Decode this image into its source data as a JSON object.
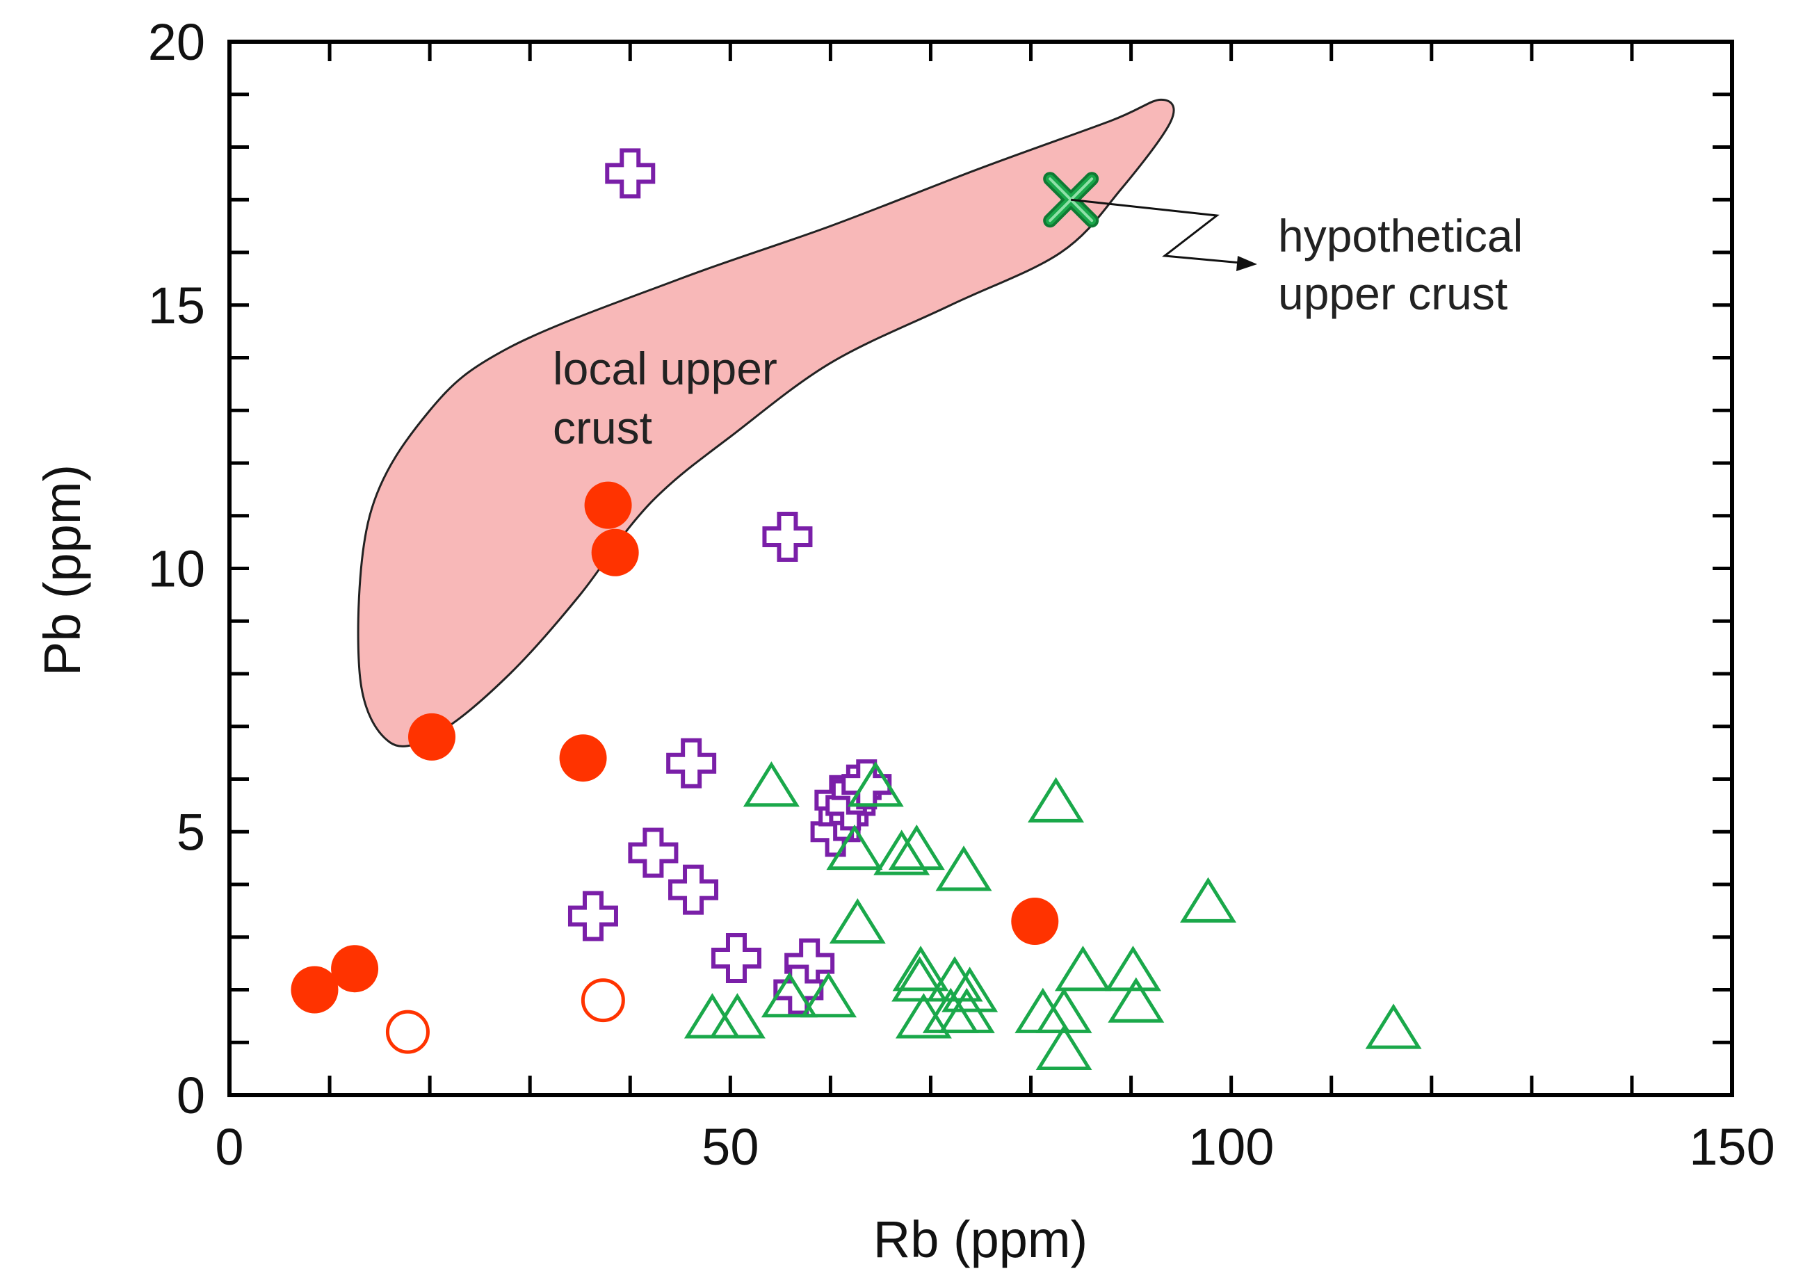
{
  "chart_data": {
    "type": "scatter",
    "title": "",
    "xlabel": "Rb (ppm)",
    "ylabel": "Pb (ppm)",
    "xlim": [
      0,
      150
    ],
    "ylim": [
      0,
      20
    ],
    "x_ticks": [
      0,
      50,
      100,
      150
    ],
    "y_ticks": [
      0,
      5,
      10,
      15,
      20
    ],
    "grid": false,
    "legend": "none",
    "series": [
      {
        "name": "filled circles",
        "marker": "filled-circle",
        "color": "#ff3300",
        "points": [
          [
            8.5,
            2.0
          ],
          [
            12.5,
            2.4
          ],
          [
            20.2,
            6.8
          ],
          [
            35.3,
            6.4
          ],
          [
            37.8,
            11.2
          ],
          [
            38.5,
            10.3
          ],
          [
            80.4,
            3.3
          ]
        ]
      },
      {
        "name": "open circles",
        "marker": "open-circle",
        "color": "#ff3300",
        "points": [
          [
            17.8,
            1.2
          ],
          [
            37.3,
            1.8
          ]
        ]
      },
      {
        "name": "crosses",
        "marker": "open-cross",
        "color": "#7a1fa8",
        "points": [
          [
            40.0,
            17.5
          ],
          [
            55.7,
            10.6
          ],
          [
            46.1,
            6.3
          ],
          [
            42.3,
            4.6
          ],
          [
            46.3,
            3.9
          ],
          [
            36.3,
            3.4
          ],
          [
            50.6,
            2.6
          ],
          [
            57.9,
            2.5
          ],
          [
            56.8,
            2.0
          ],
          [
            60.5,
            5.0
          ],
          [
            61.3,
            5.3
          ],
          [
            60.9,
            5.6
          ],
          [
            62.0,
            5.5
          ],
          [
            62.6,
            5.8
          ],
          [
            63.6,
            5.9
          ]
        ]
      },
      {
        "name": "triangles",
        "marker": "open-triangle",
        "color": "#1aa84a",
        "points": [
          [
            54.1,
            5.8
          ],
          [
            64.5,
            5.8
          ],
          [
            82.5,
            5.5
          ],
          [
            62.4,
            4.6
          ],
          [
            67.1,
            4.5
          ],
          [
            68.6,
            4.6
          ],
          [
            73.3,
            4.2
          ],
          [
            97.7,
            3.6
          ],
          [
            62.7,
            3.2
          ],
          [
            69.0,
            2.3
          ],
          [
            68.9,
            2.1
          ],
          [
            72.4,
            2.1
          ],
          [
            73.9,
            1.9
          ],
          [
            85.2,
            2.3
          ],
          [
            90.2,
            2.3
          ],
          [
            90.5,
            1.7
          ],
          [
            48.2,
            1.4
          ],
          [
            50.7,
            1.4
          ],
          [
            55.9,
            1.8
          ],
          [
            59.8,
            1.8
          ],
          [
            69.3,
            1.4
          ],
          [
            72.0,
            1.5
          ],
          [
            73.6,
            1.5
          ],
          [
            81.2,
            1.5
          ],
          [
            83.3,
            1.5
          ],
          [
            83.3,
            0.8
          ],
          [
            116.2,
            1.2
          ]
        ]
      },
      {
        "name": "hypothetical upper crust",
        "marker": "x",
        "color": "#1aa84a",
        "points": [
          [
            84.0,
            17.0
          ]
        ]
      }
    ],
    "field": {
      "name": "local upper crust",
      "color": "#f8b8b8",
      "outline": [
        [
          16.0,
          6.7
        ],
        [
          13.0,
          8.0
        ],
        [
          14.0,
          11.0
        ],
        [
          20.0,
          13.0
        ],
        [
          28.0,
          14.2
        ],
        [
          45.0,
          15.5
        ],
        [
          60.0,
          16.5
        ],
        [
          75.0,
          17.6
        ],
        [
          88.0,
          18.5
        ],
        [
          93.0,
          18.9
        ],
        [
          94.0,
          18.5
        ],
        [
          89.0,
          17.2
        ],
        [
          83.0,
          16.0
        ],
        [
          72.0,
          15.0
        ],
        [
          60.0,
          13.9
        ],
        [
          50.0,
          12.5
        ],
        [
          44.0,
          11.6
        ],
        [
          40.0,
          10.8
        ],
        [
          35.0,
          9.5
        ],
        [
          28.0,
          8.0
        ],
        [
          21.0,
          6.9
        ]
      ]
    },
    "annotations": [
      {
        "text_lines": [
          "local upper",
          "crust"
        ]
      },
      {
        "text_lines": [
          "hypothetical",
          "upper crust"
        ]
      }
    ]
  }
}
